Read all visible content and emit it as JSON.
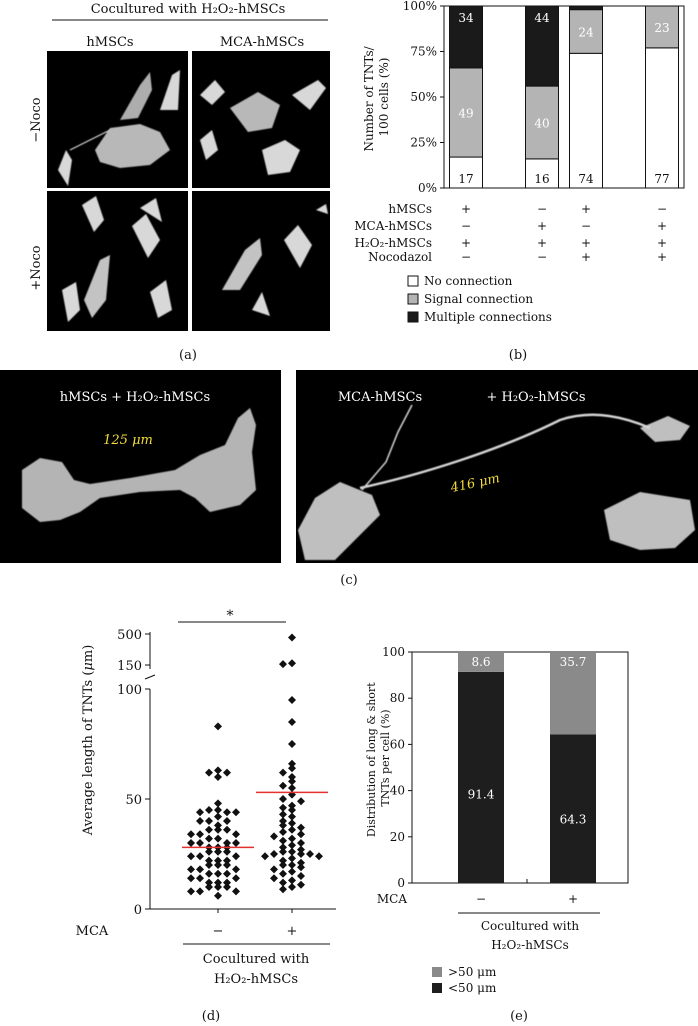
{
  "panel_a": {
    "header": "Cocultured with H₂O₂-hMSCs",
    "col_labels": [
      "hMSCs",
      "MCA-hMSCs"
    ],
    "row_labels": [
      "−Noco",
      "+Noco"
    ],
    "letter": "(a)"
  },
  "panel_b": {
    "letter": "(b)",
    "row_names": [
      "hMSCs",
      "MCA-hMSCs",
      "H₂O₂-hMSCs",
      "Nocodazol"
    ],
    "cond_signs": [
      [
        "+",
        "−",
        "+",
        "−"
      ],
      [
        "−",
        "+",
        "−",
        "+"
      ],
      [
        "+",
        "+",
        "+",
        "+"
      ],
      [
        "−",
        "−",
        "+",
        "+"
      ]
    ],
    "legend": [
      "No connection",
      "Signal connection",
      "Multiple connections"
    ]
  },
  "panel_c": {
    "letter": "(c)",
    "left_label": "hMSCs + H₂O₂-hMSCs",
    "left_length": "125 μm",
    "right_label_1": "MCA-hMSCs",
    "right_label_2": "+ H₂O₂-hMSCs",
    "right_length": "416 μm"
  },
  "panel_d": {
    "letter": "(d)",
    "sig": "*",
    "mca_label": "MCA",
    "footer_1": "Cocultured with",
    "footer_2": "H₂O₂-hMSCs"
  },
  "panel_e": {
    "letter": "(e)",
    "mca_label": "MCA",
    "footer_1": "Cocultured with",
    "footer_2": "H₂O₂-hMSCs"
  },
  "chart_data": [
    {
      "id": "b",
      "type": "bar",
      "stacked": true,
      "percent": true,
      "ylabel": "Number of TNTs/ 100 cells (%)",
      "yticks": [
        "0%",
        "25%",
        "50%",
        "75%",
        "100%"
      ],
      "ylim": [
        0,
        100
      ],
      "series": [
        {
          "name": "No connection",
          "values": [
            17,
            16,
            74,
            77
          ],
          "color": "#ffffff",
          "label_color": "#111111"
        },
        {
          "name": "Signal connection",
          "values": [
            49,
            40,
            24,
            23
          ],
          "color": "#b4b4b4",
          "label_color": "#ffffff"
        },
        {
          "name": "Multiple connections",
          "values": [
            34,
            44,
            2,
            0
          ],
          "color": "#1a1a1a",
          "label_color": "#ffffff"
        }
      ],
      "bar_labels": [
        [
          "17",
          "49",
          "34"
        ],
        [
          "16",
          "40",
          "44"
        ],
        [
          "74",
          "24",
          ""
        ],
        [
          "77",
          "23",
          ""
        ]
      ]
    },
    {
      "id": "d",
      "type": "scatter",
      "ylabel": "Average length of TNTs (μm)",
      "ytick_labels": [
        "0",
        "50",
        "100",
        "150",
        "500"
      ],
      "categories": [
        "−",
        "+"
      ],
      "means": [
        28,
        53
      ],
      "mean_color": "#e53030",
      "series": [
        {
          "values": [
            83,
            63,
            62,
            62,
            60,
            48,
            45,
            45,
            44,
            44,
            44,
            42,
            40,
            40,
            40,
            38,
            36,
            36,
            36,
            34,
            34,
            34,
            32,
            32,
            30,
            30,
            30,
            30,
            28,
            28,
            28,
            26,
            26,
            26,
            24,
            24,
            24,
            22,
            22,
            22,
            20,
            20,
            20,
            18,
            18,
            18,
            16,
            16,
            16,
            14,
            14,
            14,
            12,
            12,
            12,
            10,
            10,
            10,
            8,
            8,
            8,
            6
          ]
        },
        {
          "values": [
            460,
            170,
            160,
            95,
            85,
            75,
            66,
            64,
            62,
            60,
            58,
            56,
            55,
            52,
            50,
            49,
            47,
            46,
            45,
            43,
            42,
            40,
            39,
            38,
            37,
            36,
            35,
            34,
            33,
            32,
            31,
            30,
            29,
            28,
            27,
            26,
            26,
            25,
            25,
            25,
            24,
            24,
            23,
            22,
            21,
            20,
            20,
            19,
            18,
            17,
            16,
            15,
            14,
            13,
            12,
            11,
            10,
            9
          ]
        }
      ]
    },
    {
      "id": "e",
      "type": "bar",
      "stacked": true,
      "ylabel": "Distribution of long & short TNTs per cell (%)",
      "yticks": [
        0,
        20,
        40,
        60,
        80,
        100
      ],
      "ylim": [
        0,
        100
      ],
      "categories": [
        "−",
        "+"
      ],
      "series": [
        {
          "name": "<50 μm",
          "values": [
            91.4,
            64.3
          ],
          "color": "#1e1e1e",
          "label_color": "#ffffff"
        },
        {
          "name": ">50 μm",
          "values": [
            8.6,
            35.7
          ],
          "color": "#8a8a8a",
          "label_color": "#ffffff"
        }
      ],
      "bar_labels": [
        [
          "91.4",
          "8.6"
        ],
        [
          "64.3",
          "35.7"
        ]
      ],
      "legend": [
        ">50 μm",
        "<50 μm"
      ]
    }
  ]
}
